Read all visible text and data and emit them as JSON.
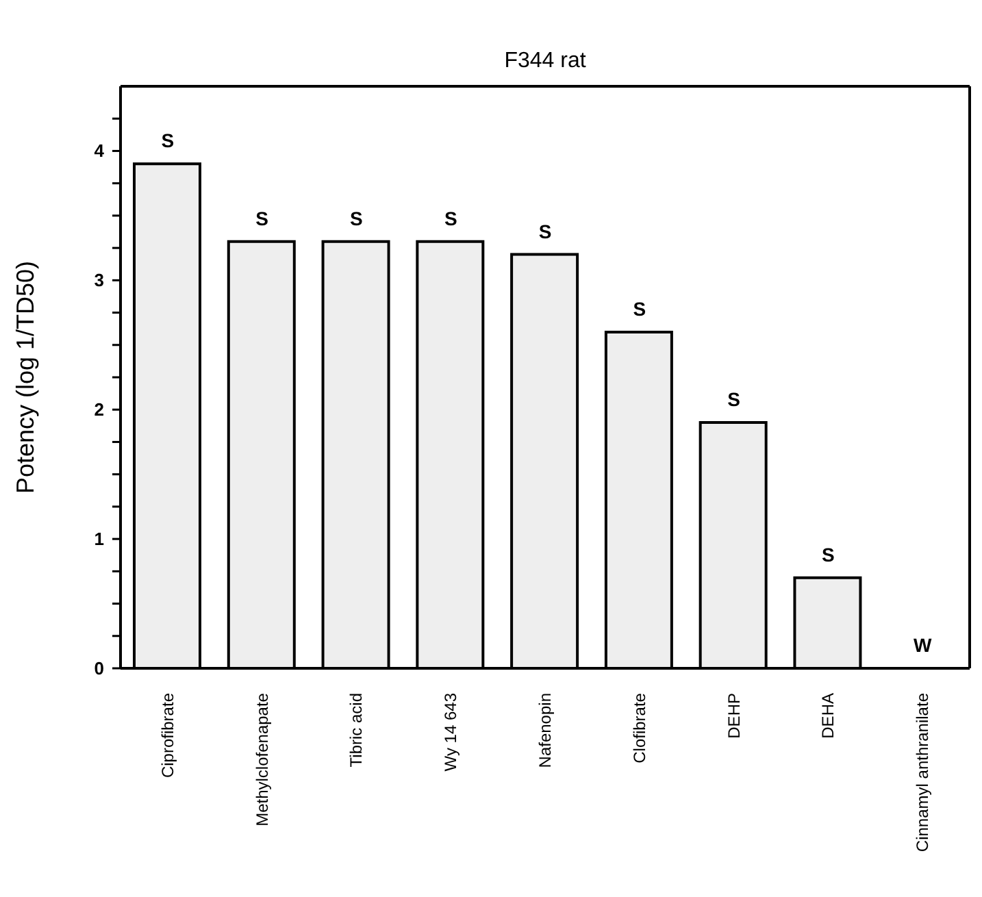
{
  "chart_data": {
    "type": "bar",
    "title": "F344 rat",
    "ylabel": "Potency (log 1/TD50)",
    "categories": [
      "Ciprofibrate",
      "Methylclofenapate",
      "Tibric acid",
      "Wy 14 643",
      "Nafenopin",
      "Clofibrate",
      "DEHP",
      "DEHA",
      "Cinnamyl anthranilate"
    ],
    "values": [
      3.9,
      3.3,
      3.3,
      3.3,
      3.2,
      2.6,
      1.9,
      0.7,
      0
    ],
    "color": "#eeeeee",
    "ylim": [
      0,
      4.5
    ],
    "yticks": [
      0,
      {
        "value": 0.25,
        "label": null
      },
      {
        "value": 0.5,
        "label": null
      },
      {
        "value": 0.75,
        "label": null
      },
      1,
      {
        "value": 1.25,
        "label": null
      },
      {
        "value": 1.5,
        "label": null
      },
      {
        "value": 1.75,
        "label": null
      },
      2,
      {
        "value": 2.25,
        "label": null
      },
      {
        "value": 2.5,
        "label": null
      },
      {
        "value": 2.75,
        "label": null
      },
      3,
      {
        "value": 3.25,
        "label": null
      },
      {
        "value": 3.5,
        "label": null
      },
      {
        "value": 3.75,
        "label": null
      },
      4,
      {
        "value": 4.25,
        "label": null
      }
    ],
    "annotations": [
      {
        "text": "S",
        "x": "Ciprofibrate",
        "y": 3.9
      },
      {
        "text": "S",
        "x": "Methylclofenapate",
        "y": 3.3
      },
      {
        "text": "S",
        "x": "Tibric acid",
        "y": 3.3
      },
      {
        "text": "S",
        "x": "Wy 14 643",
        "y": 3.3
      },
      {
        "text": "S",
        "x": "Nafenopin",
        "y": 3.2
      },
      {
        "text": "S",
        "x": "Clofibrate",
        "y": 2.6
      },
      {
        "text": "S",
        "x": "DEHP",
        "y": 1.9
      },
      {
        "text": "S",
        "x": "DEHA",
        "y": 0.7
      },
      {
        "text": "W",
        "x": "Cinnamyl anthranilate",
        "y": 0
      }
    ],
    "grid": false,
    "legend": false
  }
}
